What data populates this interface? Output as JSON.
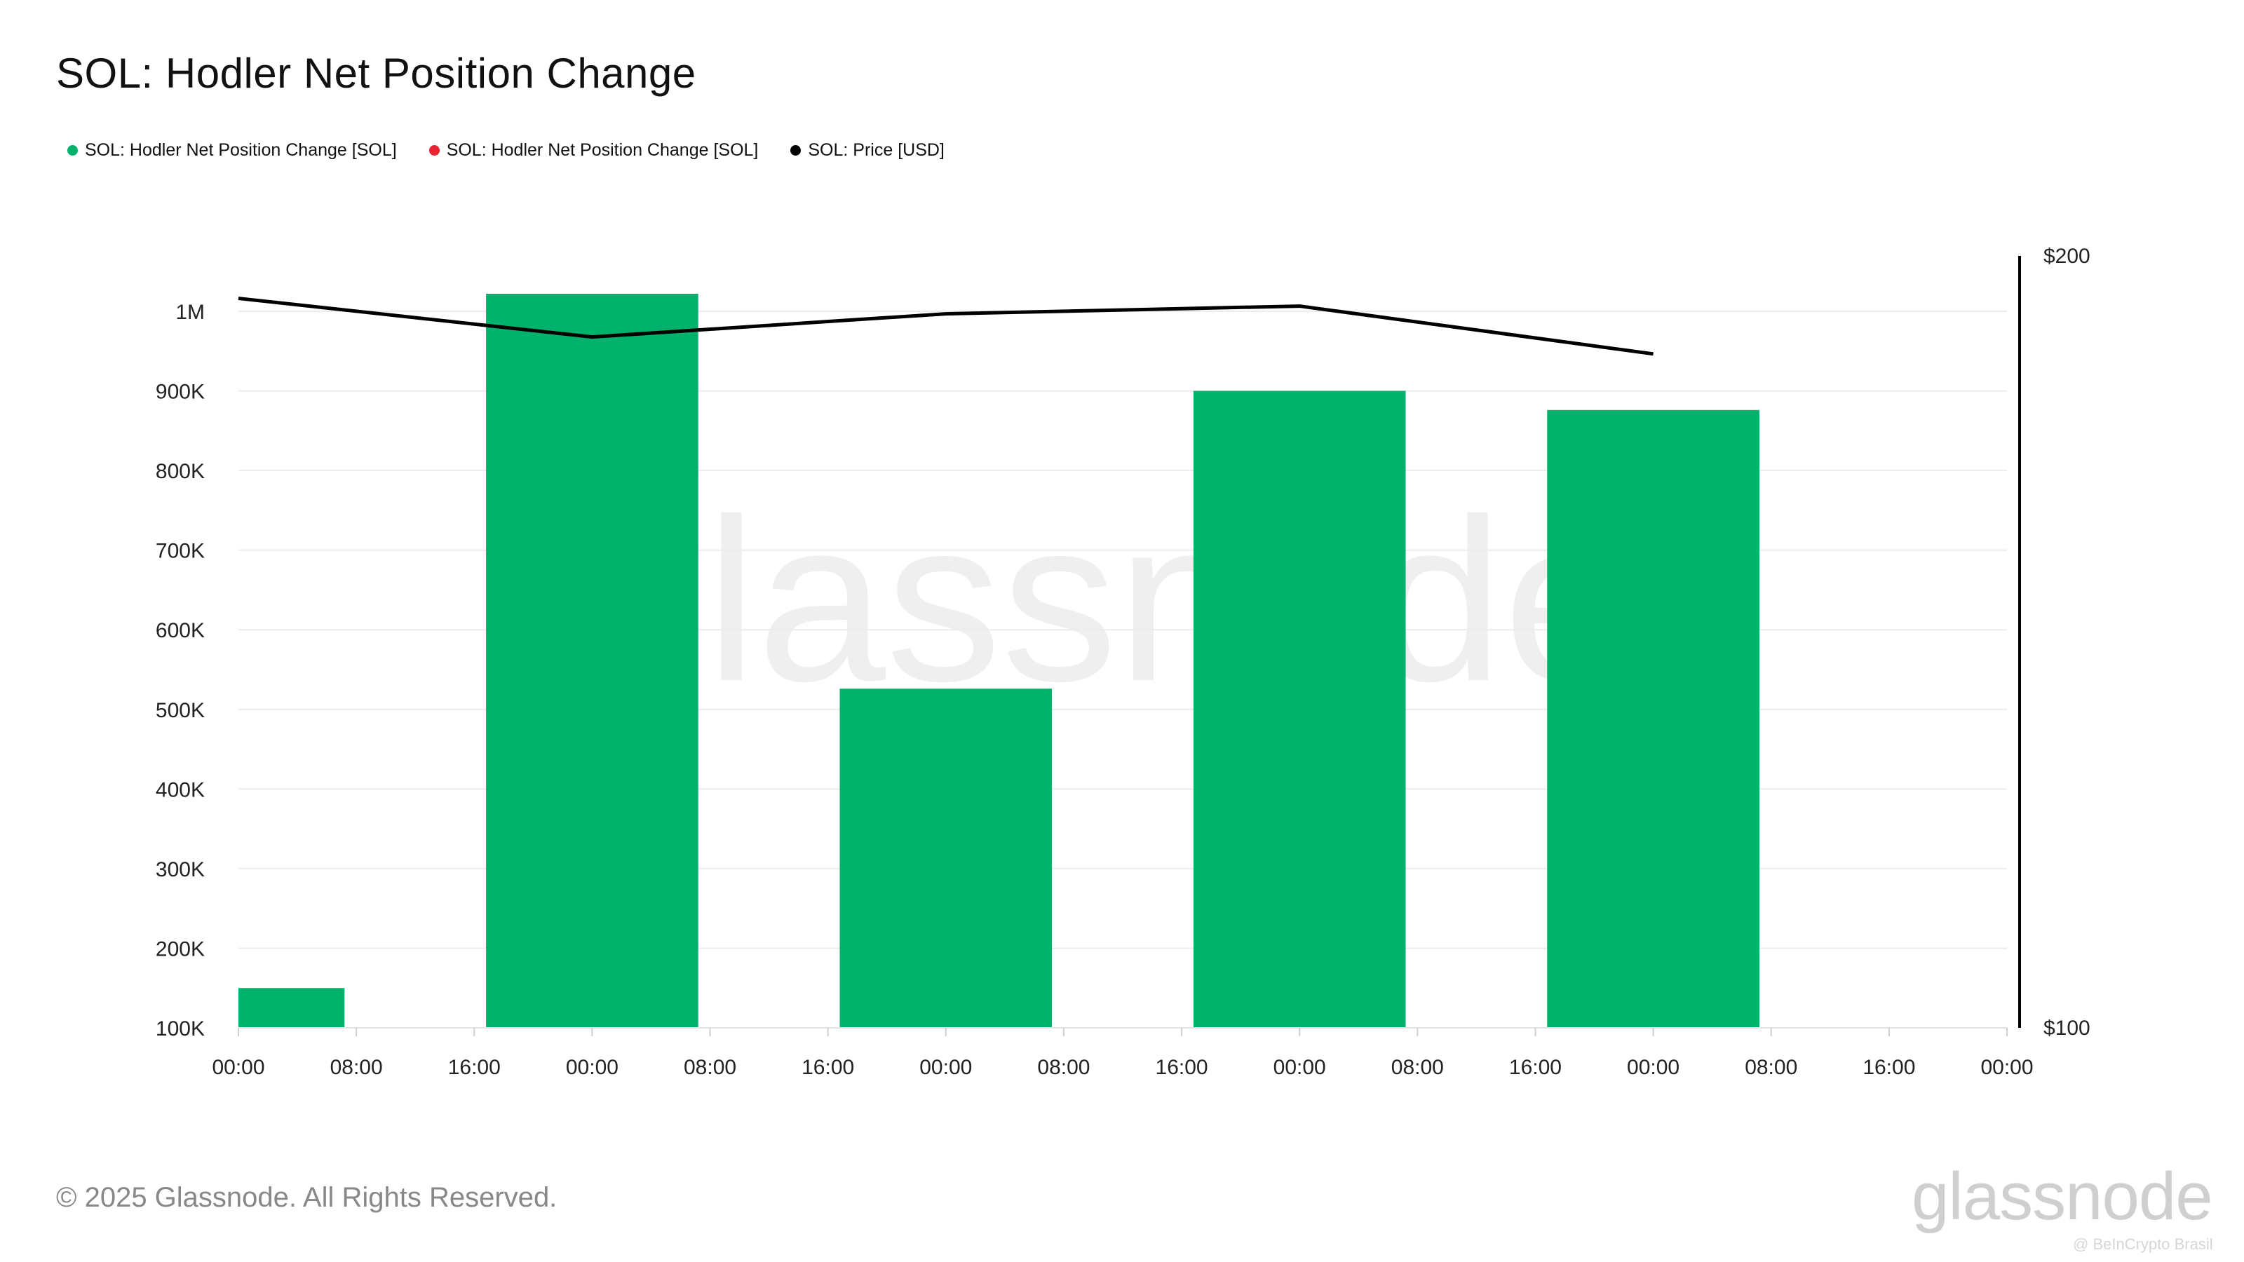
{
  "title": "SOL: Hodler Net Position Change",
  "legend": [
    {
      "label": "SOL: Hodler Net Position Change [SOL]",
      "color": "#00b26b"
    },
    {
      "label": "SOL: Hodler Net Position Change [SOL]",
      "color": "#e8232f"
    },
    {
      "label": "SOL: Price [USD]",
      "color": "#000000"
    }
  ],
  "footer": "© 2025 Glassnode. All Rights Reserved.",
  "brand": "glassnode",
  "watermark_text": "glassnode",
  "watermark_tag": "@ BeInCrypto Brasil",
  "chart_data": {
    "type": "bar",
    "x_ticks": [
      "00:00",
      "08:00",
      "16:00",
      "00:00",
      "08:00",
      "16:00",
      "00:00",
      "08:00",
      "16:00",
      "00:00",
      "08:00",
      "16:00",
      "00:00",
      "08:00",
      "16:00",
      "00:00"
    ],
    "y_ticks": [
      {
        "value": 100000,
        "label": "100K"
      },
      {
        "value": 200000,
        "label": "200K"
      },
      {
        "value": 300000,
        "label": "300K"
      },
      {
        "value": 400000,
        "label": "400K"
      },
      {
        "value": 500000,
        "label": "500K"
      },
      {
        "value": 600000,
        "label": "600K"
      },
      {
        "value": 700000,
        "label": "700K"
      },
      {
        "value": 800000,
        "label": "800K"
      },
      {
        "value": 900000,
        "label": "900K"
      },
      {
        "value": 1000000,
        "label": "1M"
      }
    ],
    "ylim": [
      100000,
      1000000
    ],
    "y2_ticks": [
      {
        "value": 100,
        "label": "$100"
      },
      {
        "value": 200,
        "label": "$200"
      }
    ],
    "y2lim": [
      100,
      200
    ],
    "series": [
      {
        "name": "SOL: Hodler Net Position Change [SOL]",
        "kind": "bar",
        "color": "#00b26b",
        "points": [
          {
            "x_start": 0,
            "x_end": 0.9,
            "value": 150000
          },
          {
            "x_start": 2.1,
            "x_end": 3.9,
            "value": 1022000
          },
          {
            "x_start": 5.1,
            "x_end": 6.9,
            "value": 526000
          },
          {
            "x_start": 8.1,
            "x_end": 9.9,
            "value": 900000
          },
          {
            "x_start": 11.1,
            "x_end": 12.9,
            "value": 876000
          }
        ]
      },
      {
        "name": "SOL: Price [USD]",
        "kind": "line",
        "color": "#000000",
        "axis": "right",
        "points": [
          {
            "x": 0,
            "value": 194.5
          },
          {
            "x": 3,
            "value": 189.5
          },
          {
            "x": 6,
            "value": 192.5
          },
          {
            "x": 9,
            "value": 193.5
          },
          {
            "x": 12,
            "value": 187.3
          }
        ]
      }
    ],
    "grid": true
  }
}
